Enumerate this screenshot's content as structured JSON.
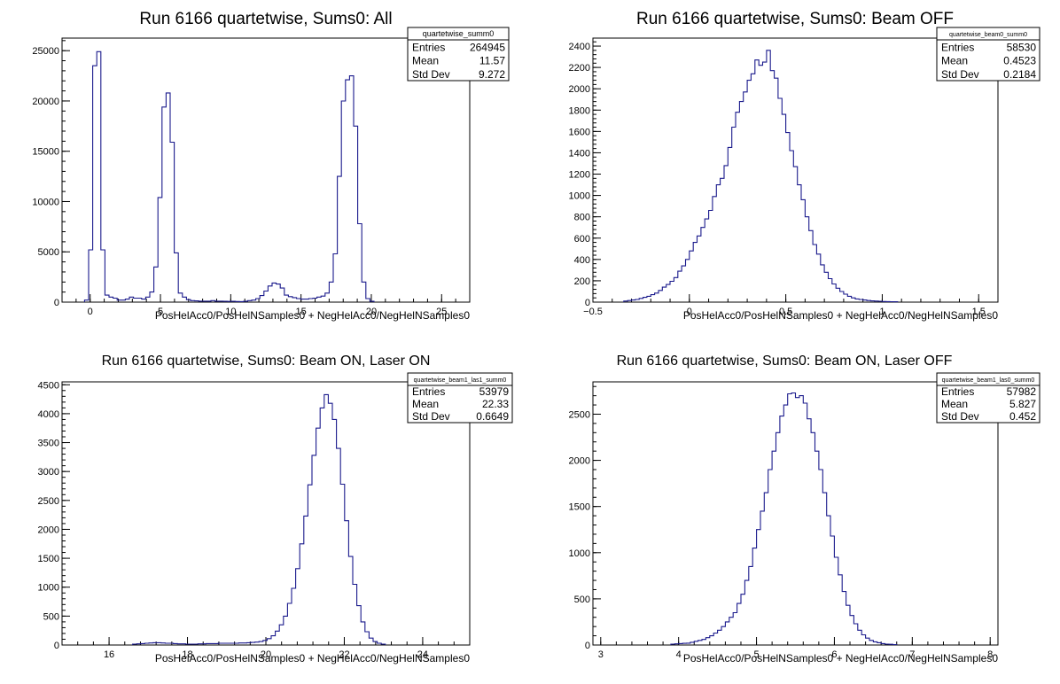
{
  "chart_data": [
    {
      "type": "bar",
      "title": "Run 6166 quartetwise, Sums0: All",
      "xlabel": "PosHelAcc0/PosHelNSamples0 + NegHelAcc0/NegHelNSamples0",
      "ylabel": "",
      "xlim": [
        -2,
        27
      ],
      "ylim": [
        0,
        26250
      ],
      "xticks": [
        0,
        5,
        10,
        15,
        20,
        25
      ],
      "yticks": [
        0,
        5000,
        10000,
        15000,
        20000,
        25000
      ],
      "stats": {
        "name": "quartetwise_summ0",
        "rows": [
          {
            "label": "Entries",
            "value": "264945"
          },
          {
            "label": "Mean",
            "value": "11.57"
          },
          {
            "label": "Std Dev",
            "value": "9.272"
          }
        ]
      },
      "bin_width": 0.29,
      "bin_start": -0.4,
      "values": [
        200,
        5200,
        23500,
        24900,
        5200,
        700,
        500,
        400,
        200,
        200,
        300,
        500,
        400,
        400,
        300,
        500,
        1000,
        3500,
        10400,
        19400,
        20800,
        15900,
        4900,
        900,
        500,
        250,
        150,
        120,
        100,
        100,
        100,
        150,
        100,
        100,
        80,
        70,
        80,
        60,
        50,
        80,
        150,
        200,
        350,
        650,
        1100,
        1600,
        1900,
        1800,
        1400,
        700,
        550,
        450,
        350,
        300,
        300,
        350,
        400,
        500,
        600,
        900,
        2000,
        4800,
        12500,
        20000,
        22100,
        22500,
        17500,
        7800,
        2000,
        350,
        80
      ]
    },
    {
      "type": "bar",
      "title": "Run 6166 quartetwise, Sums0: Beam OFF",
      "xlabel": "PosHelAcc0/PosHelNSamples0 + NegHelAcc0/NegHelNSamples0",
      "ylabel": "",
      "xlim": [
        -0.5,
        1.6
      ],
      "ylim": [
        0,
        2475
      ],
      "xticks": [
        -0.5,
        0,
        0.5,
        1,
        1.5
      ],
      "yticks": [
        0,
        200,
        400,
        600,
        800,
        1000,
        1200,
        1400,
        1600,
        1800,
        2000,
        2200,
        2400
      ],
      "stats": {
        "name": "quartetwise_beam0_summ0",
        "rows": [
          {
            "label": "Entries",
            "value": "58530"
          },
          {
            "label": "Mean",
            "value": "0.4523"
          },
          {
            "label": "Std Dev",
            "value": "0.2184"
          }
        ]
      },
      "bin_width": 0.02,
      "bin_start": -0.34,
      "values": [
        10,
        15,
        20,
        25,
        35,
        45,
        55,
        70,
        85,
        110,
        140,
        165,
        195,
        230,
        290,
        340,
        400,
        480,
        560,
        620,
        700,
        780,
        860,
        990,
        1100,
        1160,
        1280,
        1450,
        1640,
        1780,
        1880,
        1970,
        2080,
        2140,
        2270,
        2220,
        2250,
        2360,
        2170,
        2100,
        1910,
        1760,
        1590,
        1420,
        1270,
        1100,
        960,
        800,
        670,
        540,
        450,
        350,
        280,
        220,
        170,
        130,
        100,
        75,
        55,
        40,
        30,
        25,
        20,
        15,
        12,
        10,
        8,
        6,
        5,
        4,
        3
      ]
    },
    {
      "type": "bar",
      "title": "Run 6166 quartetwise, Sums0: Beam ON, Laser ON",
      "xlabel": "PosHelAcc0/PosHelNSamples0 + NegHelAcc0/NegHelNSamples0",
      "ylabel": "",
      "xlim": [
        14.8,
        25.2
      ],
      "ylim": [
        0,
        4550
      ],
      "xticks": [
        16,
        18,
        20,
        22,
        24
      ],
      "yticks": [
        0,
        500,
        1000,
        1500,
        2000,
        2500,
        3000,
        3500,
        4000,
        4500
      ],
      "stats": {
        "name": "quartetwise_beam1_las1_summ0",
        "rows": [
          {
            "label": "Entries",
            "value": "53979"
          },
          {
            "label": "Mean",
            "value": "22.33"
          },
          {
            "label": "Std Dev",
            "value": "0.6649"
          }
        ]
      },
      "bin_width": 0.104,
      "bin_start": 16.6,
      "values": [
        15,
        20,
        25,
        30,
        35,
        40,
        40,
        35,
        30,
        30,
        25,
        20,
        20,
        15,
        15,
        15,
        20,
        20,
        25,
        25,
        25,
        30,
        30,
        30,
        30,
        30,
        35,
        35,
        40,
        45,
        50,
        60,
        80,
        110,
        160,
        240,
        350,
        500,
        720,
        980,
        1320,
        1750,
        2230,
        2770,
        3280,
        3750,
        4100,
        4330,
        4180,
        3900,
        3400,
        2780,
        2150,
        1530,
        1050,
        680,
        400,
        230,
        120,
        60,
        30,
        15
      ]
    },
    {
      "type": "bar",
      "title": "Run 6166 quartetwise, Sums0: Beam ON, Laser OFF",
      "xlabel": "PosHelAcc0/PosHelNSamples0 + NegHelAcc0/NegHelNSamples0",
      "ylabel": "",
      "xlim": [
        2.9,
        8.1
      ],
      "ylim": [
        0,
        2850
      ],
      "xticks": [
        3,
        4,
        5,
        6,
        7,
        8
      ],
      "yticks": [
        0,
        500,
        1000,
        1500,
        2000,
        2500
      ],
      "stats": {
        "name": "quartetwise_beam1_las0_summ0",
        "rows": [
          {
            "label": "Entries",
            "value": "57982"
          },
          {
            "label": "Mean",
            "value": "5.827"
          },
          {
            "label": "Std Dev",
            "value": "0.452"
          }
        ]
      },
      "bin_width": 0.05,
      "bin_start": 3.9,
      "values": [
        10,
        12,
        15,
        18,
        20,
        30,
        40,
        50,
        60,
        80,
        100,
        130,
        160,
        200,
        250,
        300,
        350,
        450,
        550,
        700,
        850,
        1050,
        1250,
        1450,
        1650,
        1900,
        2100,
        2300,
        2480,
        2600,
        2720,
        2730,
        2680,
        2700,
        2620,
        2450,
        2300,
        2100,
        1900,
        1650,
        1400,
        1180,
        950,
        760,
        580,
        430,
        320,
        230,
        160,
        110,
        75,
        50,
        35,
        25,
        15,
        10,
        8,
        5
      ]
    }
  ]
}
